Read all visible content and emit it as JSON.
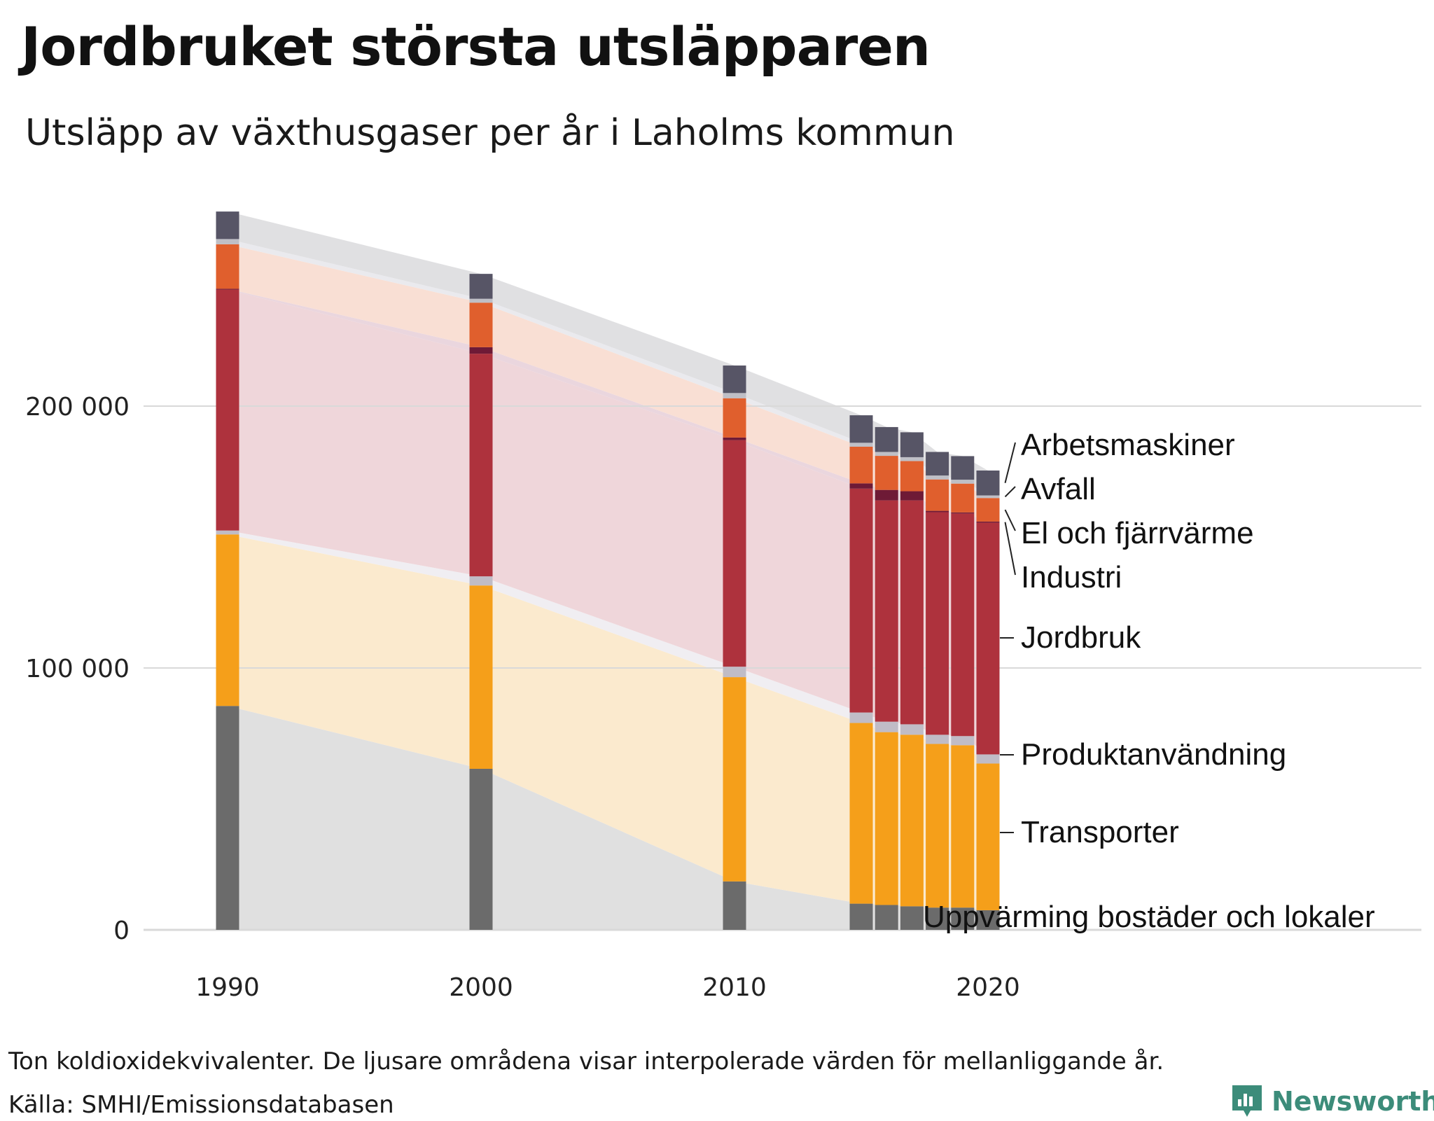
{
  "title": "Jordbruket största utsläpparen",
  "subtitle": "Utsläpp av växthusgaser per år i Laholms kommun",
  "note": "Ton koldioxidekvivalenter. De ljusare områdena visar interpolerade värden för mellanliggande år.",
  "source": "Källa: SMHI/Emissionsdatabasen",
  "brand": "Newsworthy",
  "chart_data": {
    "type": "bar",
    "stacked": true,
    "title": "Jordbruket största utsläpparen",
    "subtitle": "Utsläpp av växthusgaser per år i Laholms kommun",
    "xlabel": "",
    "ylabel": "Ton koldioxidekvivalenter",
    "ylim": [
      0,
      275000
    ],
    "grid": true,
    "yticks": [
      {
        "value": 0,
        "label": "0"
      },
      {
        "value": 100000,
        "label": "100 000"
      },
      {
        "value": 200000,
        "label": "200 000"
      }
    ],
    "xticks": [
      {
        "value": 1990,
        "label": "1990"
      },
      {
        "value": 2000,
        "label": "2000"
      },
      {
        "value": 2010,
        "label": "2010"
      },
      {
        "value": 2020,
        "label": "2020"
      }
    ],
    "categories": [
      1990,
      2000,
      2010,
      2015,
      2016,
      2017,
      2018,
      2019,
      2020
    ],
    "series": [
      {
        "name": "Uppvärming bostäder och lokaler",
        "color": "#6b6b6b",
        "light": "#e0e0e0",
        "values": [
          85500,
          61500,
          18500,
          10000,
          9500,
          9000,
          8500,
          8500,
          7500
        ]
      },
      {
        "name": "Transporter",
        "color": "#f59f1a",
        "light": "#fbeace",
        "values": [
          65500,
          70000,
          78000,
          69000,
          66000,
          65500,
          62500,
          62000,
          56000
        ]
      },
      {
        "name": "Produktanvändning",
        "color": "#c0bcc6",
        "light": "#f0eef2",
        "values": [
          1500,
          3500,
          4000,
          4000,
          4000,
          4000,
          3500,
          3500,
          3500
        ]
      },
      {
        "name": "Jordbruk",
        "color": "#ae323d",
        "light": "#efd6da",
        "values": [
          92000,
          85000,
          86500,
          85500,
          84500,
          85500,
          85000,
          85000,
          88500
        ]
      },
      {
        "name": "Industri",
        "color": "#6e1a36",
        "light": "#ead6de",
        "values": [
          300,
          2500,
          1000,
          2000,
          4000,
          3500,
          500,
          400,
          400
        ]
      },
      {
        "name": "El och fjärrvärme",
        "color": "#e05f2d",
        "light": "#f9dfd4",
        "values": [
          17000,
          17000,
          15000,
          14000,
          13000,
          11500,
          12000,
          11000,
          9000
        ]
      },
      {
        "name": "Avfall",
        "color": "#bfbfc6",
        "light": "#eaeaee",
        "values": [
          2000,
          1500,
          2000,
          1500,
          1500,
          1500,
          1500,
          1500,
          1000
        ]
      },
      {
        "name": "Arbetsmaskiner",
        "color": "#575566",
        "light": "#e0e0e2",
        "values": [
          10500,
          9500,
          10500,
          10500,
          9500,
          9500,
          9000,
          9000,
          9500
        ]
      }
    ]
  }
}
